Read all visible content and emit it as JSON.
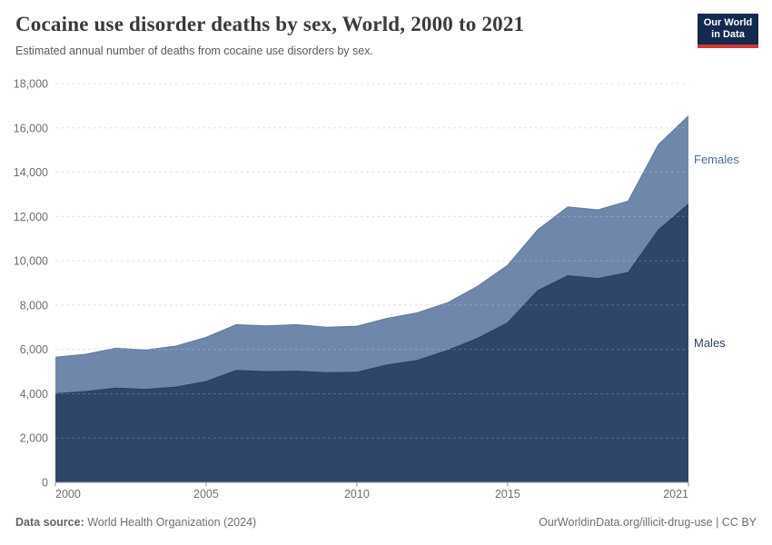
{
  "header": {
    "title": "Cocaine use disorder deaths by sex, World, 2000 to 2021",
    "subtitle": "Estimated annual number of deaths from cocaine use disorders by sex.",
    "logo": {
      "line1": "Our World",
      "line2": "in Data",
      "bg_color": "#13294f",
      "bar_color": "#cf3a30"
    }
  },
  "chart_data": {
    "type": "area",
    "stacked": true,
    "title": "Cocaine use disorder deaths by sex, World, 2000 to 2021",
    "xlabel": "",
    "ylabel": "",
    "x": [
      2000,
      2001,
      2002,
      2003,
      2004,
      2005,
      2006,
      2007,
      2008,
      2009,
      2010,
      2011,
      2012,
      2013,
      2014,
      2015,
      2016,
      2017,
      2018,
      2019,
      2020,
      2021
    ],
    "series": [
      {
        "name": "Males",
        "color": "#2f456a",
        "edge_color": "#2a3e60",
        "label_color": "#2b3f63",
        "values": [
          4000,
          4100,
          4250,
          4200,
          4300,
          4550,
          5050,
          5000,
          5020,
          4950,
          4970,
          5300,
          5500,
          5950,
          6500,
          7200,
          8650,
          9330,
          9200,
          9470,
          11390,
          12560
        ]
      },
      {
        "name": "Females",
        "color": "#6f87ab",
        "edge_color": "#64799d",
        "label_color": "#4d6ba0",
        "values": [
          1650,
          1680,
          1800,
          1780,
          1850,
          2000,
          2070,
          2060,
          2100,
          2050,
          2080,
          2100,
          2150,
          2150,
          2350,
          2600,
          2750,
          3100,
          3100,
          3230,
          3850,
          3980
        ]
      }
    ],
    "ylim": [
      0,
      18000
    ],
    "yticks": [
      0,
      2000,
      4000,
      6000,
      8000,
      10000,
      12000,
      14000,
      16000,
      18000
    ],
    "xticks": [
      2000,
      2005,
      2010,
      2015,
      2021
    ],
    "grid": true,
    "grid_color": "#dcdcdc",
    "axis_color": "#8f8f8f",
    "tick_label_color": "#6e6e6e",
    "legend_position": "right-inline-labels"
  },
  "footer": {
    "source_label": "Data source:",
    "source_value": " World Health Organization (2024)",
    "credit": "OurWorldinData.org/illicit-drug-use | CC BY"
  }
}
